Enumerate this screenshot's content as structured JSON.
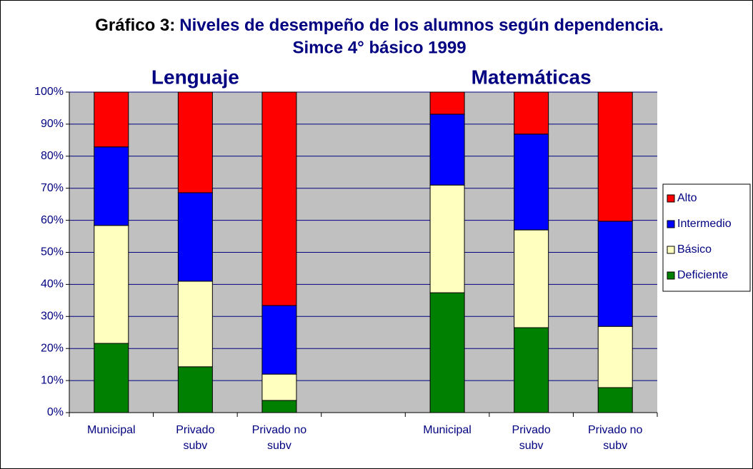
{
  "chart_data": {
    "type": "stacked_bar",
    "title": {
      "label": "Gráfico 3:",
      "lines": [
        "Niveles de desempeño de los alumnos según dependencia.",
        "Simce 4° básico 1999"
      ]
    },
    "annotations": [
      "Lenguaje",
      "Matemáticas"
    ],
    "categories": [
      "Municipal",
      "Privado subv",
      "Privado no subv",
      null,
      "Municipal",
      "Privado subv",
      "Privado no subv"
    ],
    "series": [
      {
        "name": "Deficiente",
        "color": "#008000",
        "values": [
          21.6,
          14.3,
          3.8,
          null,
          37.4,
          26.5,
          7.8
        ]
      },
      {
        "name": "Básico",
        "color": "#ffffc0",
        "values": [
          36.8,
          26.7,
          8.2,
          null,
          33.6,
          30.5,
          19.1
        ]
      },
      {
        "name": "Intermedio",
        "color": "#0000ff",
        "values": [
          24.5,
          27.6,
          21.4,
          null,
          22.1,
          29.9,
          32.8
        ]
      },
      {
        "name": "Alto",
        "color": "#ff0000",
        "values": [
          17.1,
          31.4,
          66.6,
          null,
          6.9,
          13.1,
          40.3
        ]
      }
    ],
    "ylim": [
      0,
      100
    ],
    "yticks": [
      {
        "value": 0,
        "label": "0%"
      },
      {
        "value": 10,
        "label": "10%"
      },
      {
        "value": 20,
        "label": "20%"
      },
      {
        "value": 30,
        "label": "30%"
      },
      {
        "value": 40,
        "label": "40%"
      },
      {
        "value": 50,
        "label": "50%"
      },
      {
        "value": 60,
        "label": "60%"
      },
      {
        "value": 70,
        "label": "70%"
      },
      {
        "value": 80,
        "label": "80%"
      },
      {
        "value": 90,
        "label": "90%"
      },
      {
        "value": 100,
        "label": "100%"
      }
    ],
    "grid": true,
    "legend": "right"
  }
}
